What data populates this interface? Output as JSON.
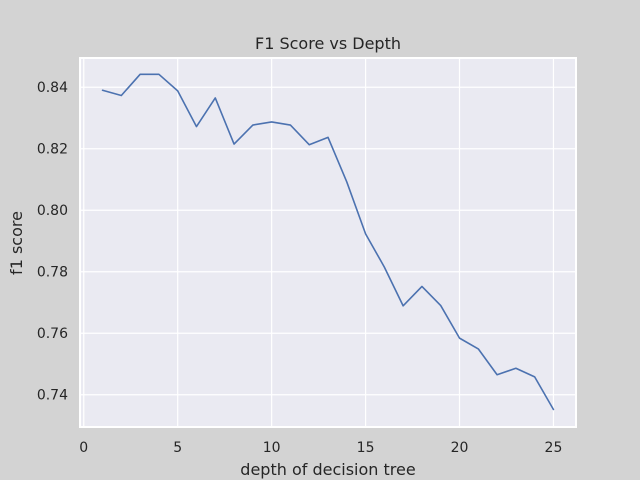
{
  "chart_data": {
    "type": "line",
    "title": "F1 Score vs Depth",
    "xlabel": "depth of decision tree",
    "ylabel": "f1 score",
    "xlim": [
      -0.2,
      26.2
    ],
    "ylim": [
      0.7295,
      0.8495
    ],
    "x_ticks": [
      0,
      5,
      10,
      15,
      20,
      25
    ],
    "y_ticks": [
      0.74,
      0.76,
      0.78,
      0.8,
      0.82,
      0.84
    ],
    "y_tick_labels": [
      "0.74",
      "0.76",
      "0.78",
      "0.80",
      "0.82",
      "0.84"
    ],
    "grid": true,
    "line_color": "#4c72b0",
    "series": [
      {
        "x": [
          1,
          2,
          3,
          4,
          5,
          6,
          7,
          8,
          9,
          10,
          11,
          12,
          13,
          14,
          15,
          16,
          17,
          18,
          19,
          20,
          21,
          22,
          23,
          24,
          25
        ],
        "values": [
          0.839,
          0.8373,
          0.8442,
          0.8442,
          0.8388,
          0.8272,
          0.8365,
          0.8215,
          0.8277,
          0.8287,
          0.8277,
          0.8213,
          0.8237,
          0.8092,
          0.7923,
          0.7815,
          0.7689,
          0.7752,
          0.769,
          0.7584,
          0.7549,
          0.7465,
          0.7486,
          0.7458,
          0.7352
        ]
      }
    ]
  }
}
